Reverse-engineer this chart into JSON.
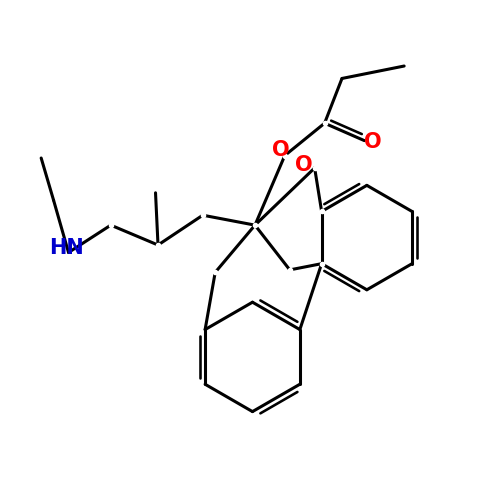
{
  "background_color": "#ffffff",
  "bond_color": "#000000",
  "bond_width": 2.2,
  "atom_colors": {
    "O": "#ff0000",
    "N": "#0000cc",
    "C": "#000000"
  },
  "figsize": [
    5.0,
    5.0
  ],
  "dpi": 100,
  "xlim": [
    0,
    10
  ],
  "ylim": [
    0,
    10
  ]
}
